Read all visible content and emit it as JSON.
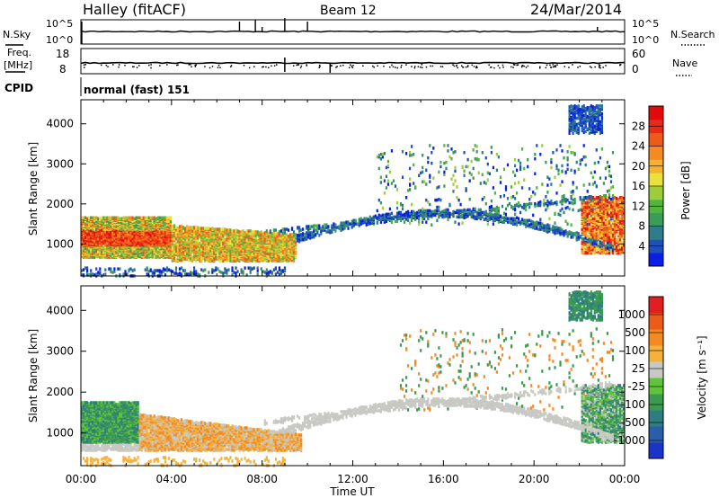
{
  "header": {
    "station": "Halley (fitACF)",
    "beam": "Beam 12",
    "date": "24/Mar/2014"
  },
  "panels": {
    "nsky_label": "N.Sky",
    "nsky_ticks": [
      "10^5",
      "10^0"
    ],
    "nsearch_label": "N.Search",
    "nsearch_ticks": [
      "10^5",
      "10^0"
    ],
    "freq_label": "Freq.",
    "freq_unit": "[MHz]",
    "freq_ticks": [
      "18",
      "8"
    ],
    "nave_label": "Nave",
    "nave_ticks": [
      "60",
      "0"
    ],
    "cpid_label": "CPID",
    "cpid_value": "normal (fast) 151"
  },
  "colorbars": {
    "power": {
      "title": "Power [dB]",
      "ticks": [
        "28",
        "24",
        "20",
        "16",
        "12",
        "8",
        "4"
      ],
      "colors": [
        "#0a1ee6",
        "#1f4fb8",
        "#2f7c8a",
        "#3c9a5a",
        "#53b440",
        "#9ccd3a",
        "#e9e23c",
        "#f5b22f",
        "#f38a22",
        "#ee5a1a",
        "#e8291a",
        "#e00a0a"
      ]
    },
    "velocity": {
      "title": "Velocity [m s⁻¹]",
      "ticks": [
        "1000",
        "500",
        "100",
        "25",
        "-25",
        "-100",
        "-500",
        "-1000"
      ],
      "colors": [
        "#1b33c8",
        "#2c5da8",
        "#2f7d80",
        "#3b9a50",
        "#5fc43a",
        "#c8c8c4",
        "#f4b23c",
        "#f38a22",
        "#ee5a1a",
        "#e02020"
      ]
    }
  },
  "chart_data": [
    {
      "type": "heatmap",
      "name": "power",
      "ylabel": "Slant Range [km]",
      "ylim": [
        200,
        4600
      ],
      "yticks": [
        "4000",
        "3000",
        "2000",
        "1000"
      ],
      "xlim": [
        "00:00",
        "24:00"
      ],
      "ground_scatter": false
    },
    {
      "type": "heatmap",
      "name": "velocity",
      "ylabel": "Slant Range [km]",
      "ylim": [
        200,
        4600
      ],
      "yticks": [
        "4000",
        "3000",
        "2000",
        "1000"
      ],
      "xticks": [
        "00:00",
        "04:00",
        "08:00",
        "12:00",
        "16:00",
        "20:00",
        "00:00"
      ],
      "xlabel": "Time UT",
      "xlim": [
        "00:00",
        "24:00"
      ],
      "ground_scatter": true
    }
  ]
}
